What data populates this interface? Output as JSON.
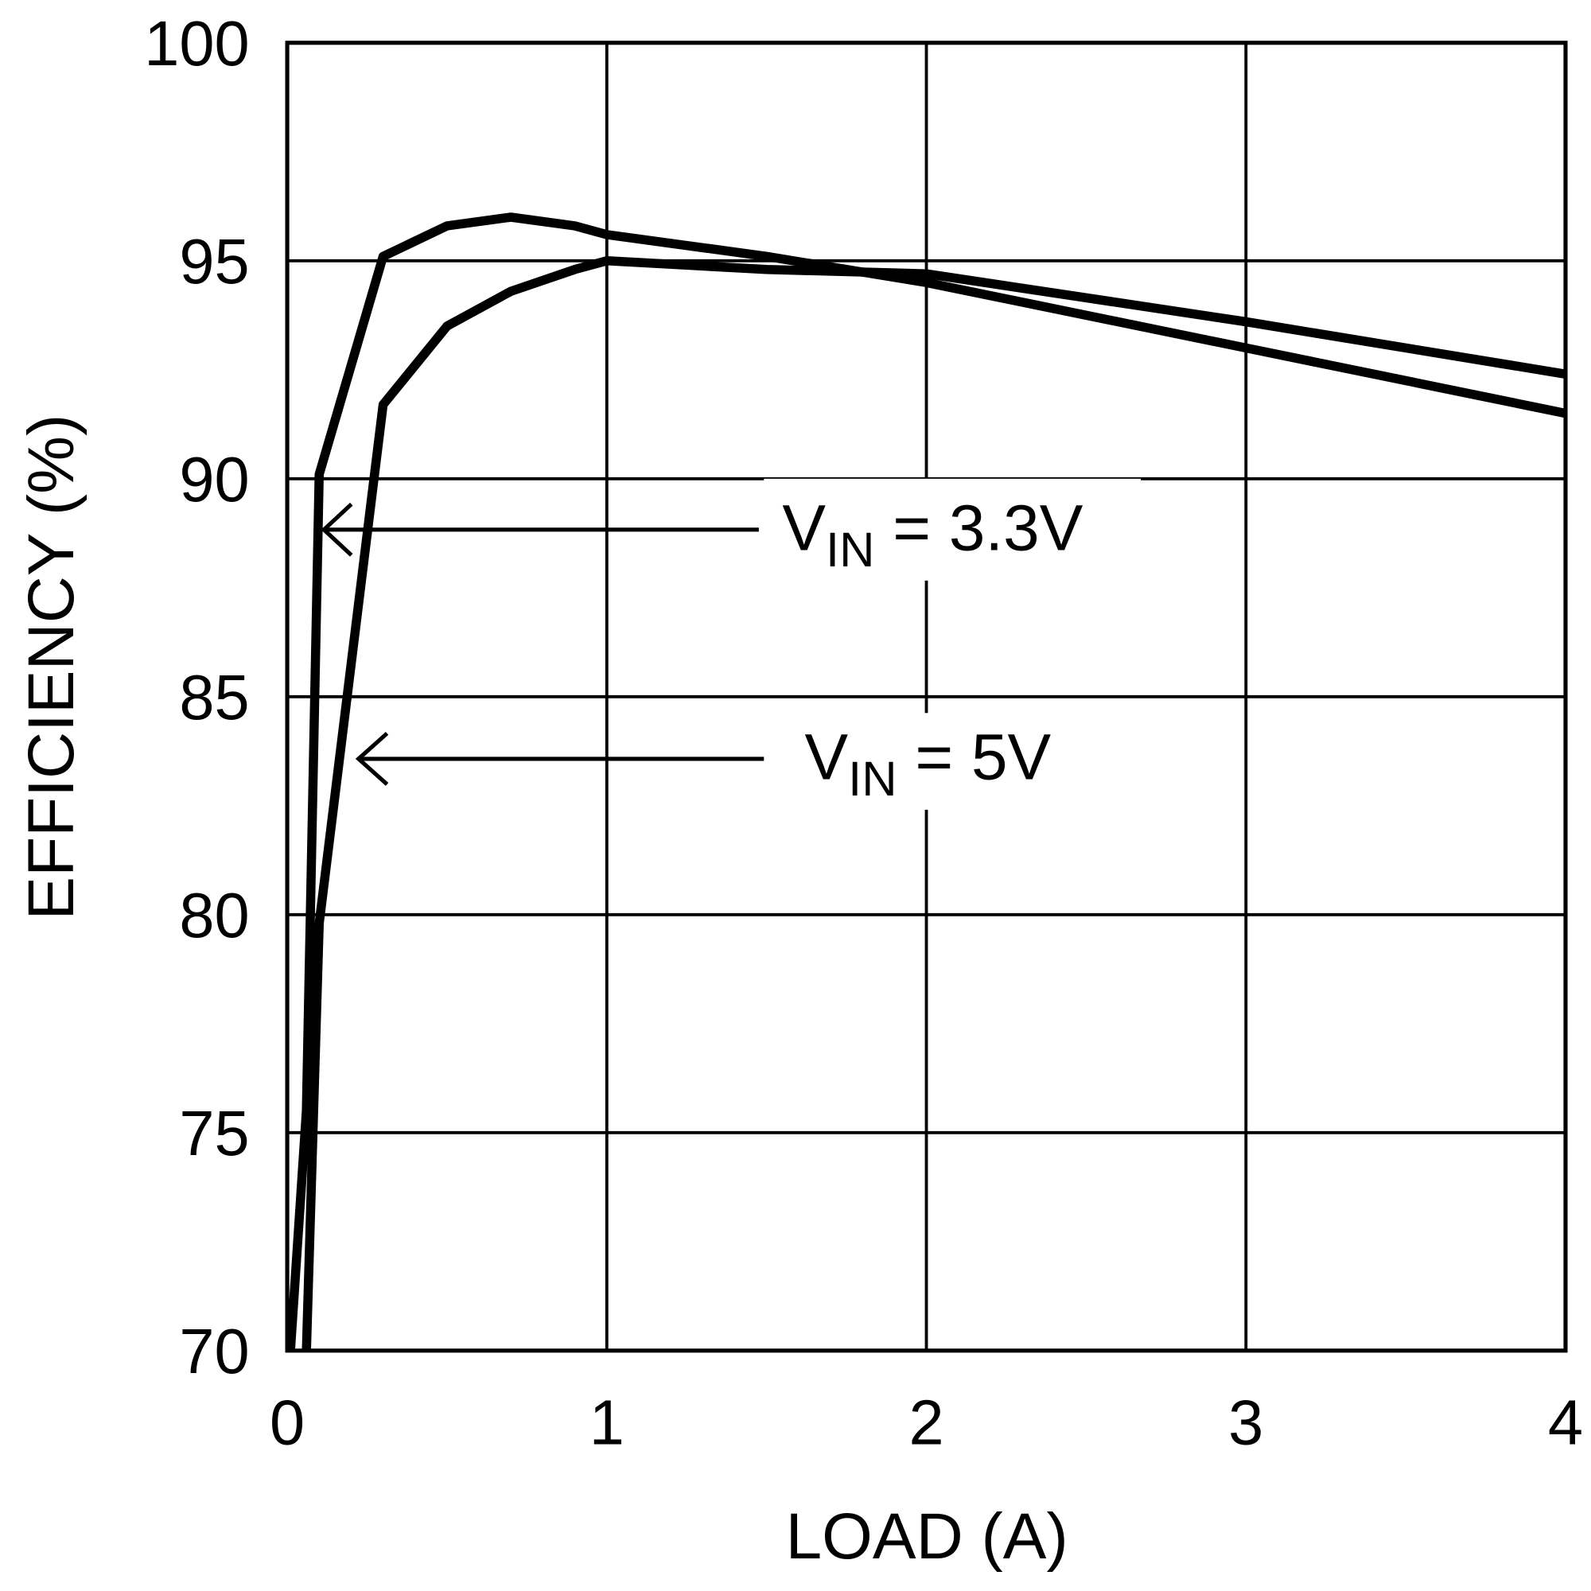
{
  "chart_data": {
    "type": "line",
    "xlabel": "LOAD (A)",
    "ylabel": "EFFICIENCY (%)",
    "xlim": [
      0,
      4
    ],
    "ylim": [
      70,
      100
    ],
    "xticks": [
      "0",
      "1",
      "2",
      "3",
      "4"
    ],
    "yticks": [
      "70",
      "75",
      "80",
      "85",
      "90",
      "95",
      "100"
    ],
    "grid": true,
    "line_color": "#000000",
    "series": [
      {
        "name": "VIN = 3.3V",
        "label_main": "V",
        "label_sub": "IN",
        "label_rest": " = 3.3V",
        "x": [
          0.01,
          0.06,
          0.1,
          0.3,
          0.5,
          0.7,
          0.9,
          1.0,
          1.5,
          2.0,
          3.0,
          4.0
        ],
        "y": [
          70,
          75.5,
          90.1,
          95.1,
          95.8,
          96.0,
          95.8,
          95.6,
          95.1,
          94.5,
          93.0,
          91.5
        ]
      },
      {
        "name": "VIN = 5V",
        "label_main": "V",
        "label_sub": "IN",
        "label_rest": " = 5V",
        "x": [
          0.06,
          0.1,
          0.3,
          0.5,
          0.7,
          0.9,
          1.0,
          1.5,
          2.0,
          3.0,
          4.0
        ],
        "y": [
          70,
          79.8,
          91.7,
          93.5,
          94.3,
          94.8,
          95.0,
          94.8,
          94.7,
          93.6,
          92.4
        ]
      }
    ]
  }
}
